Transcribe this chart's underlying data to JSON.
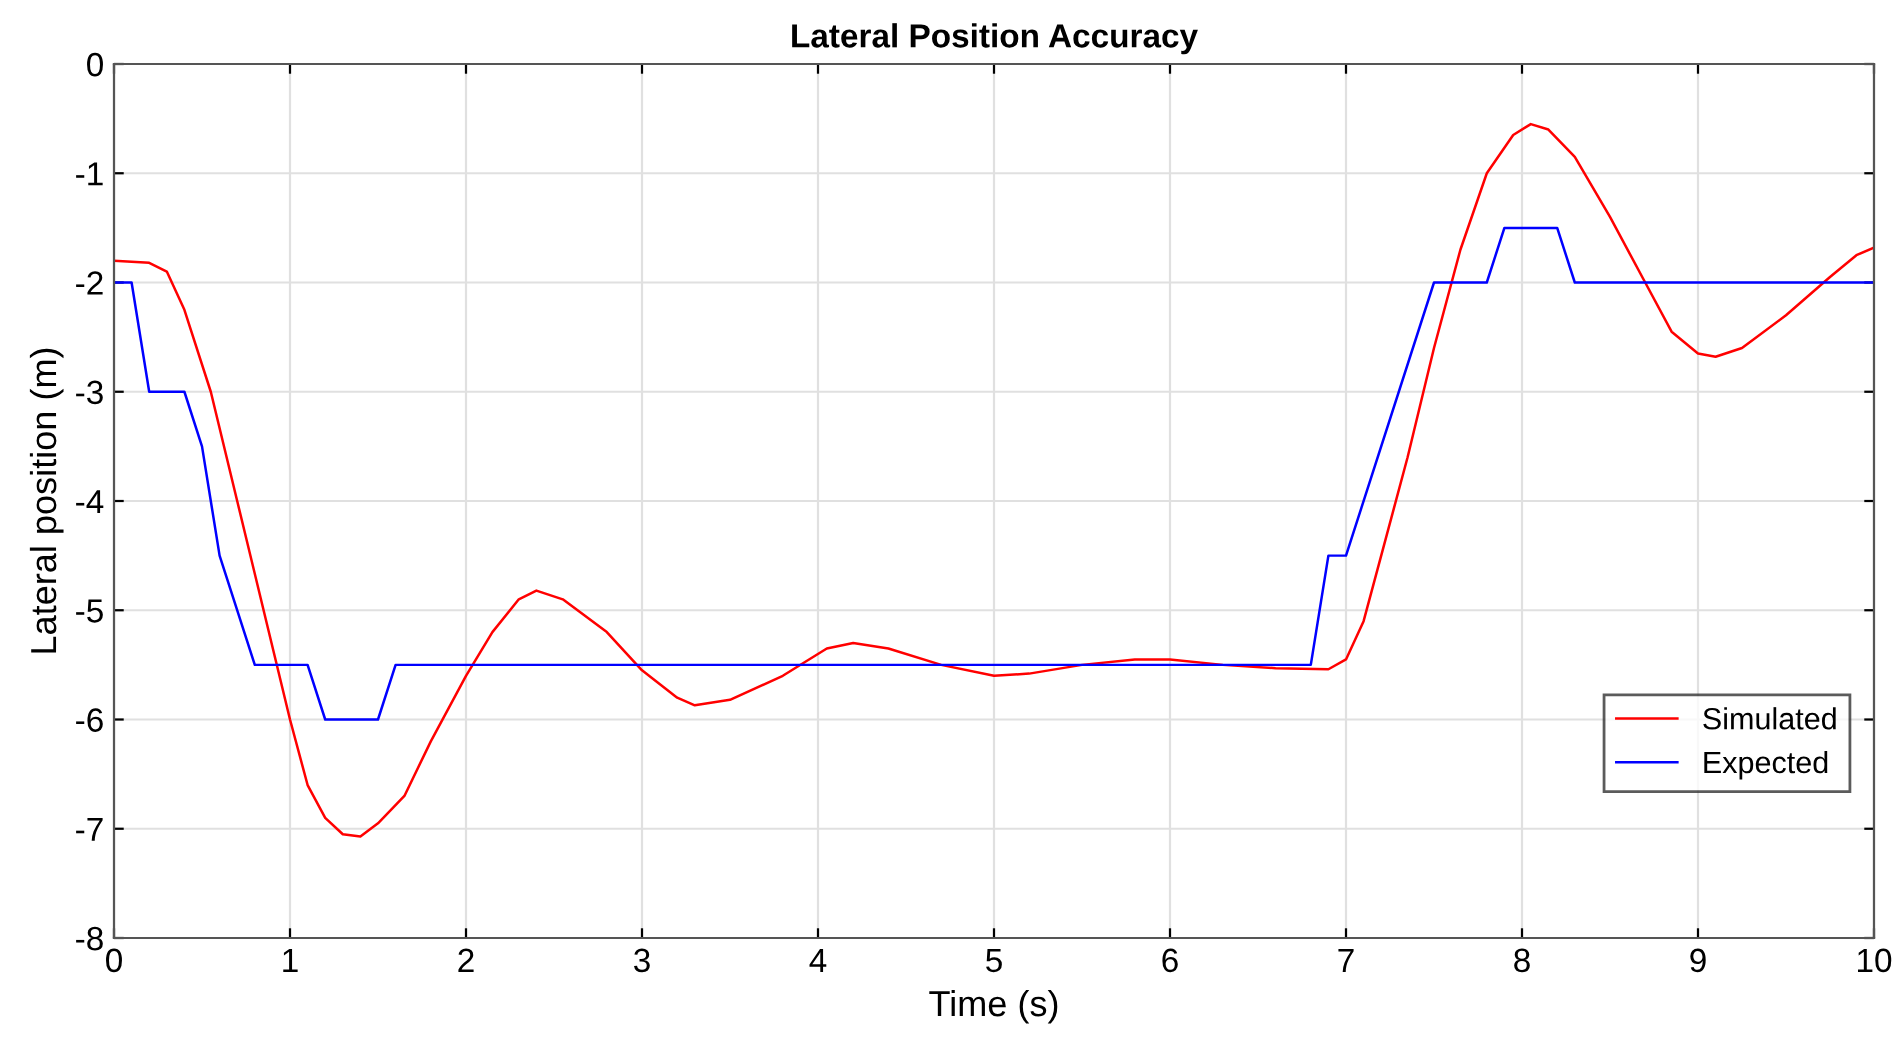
{
  "chart_data": {
    "type": "line",
    "title": "Lateral Position Accuracy",
    "xlabel": "Time (s)",
    "ylabel": "Lateral position (m)",
    "xlim": [
      0,
      10
    ],
    "ylim": [
      -8,
      0
    ],
    "xticks": [
      0,
      1,
      2,
      3,
      4,
      5,
      6,
      7,
      8,
      9,
      10
    ],
    "yticks": [
      -8,
      -7,
      -6,
      -5,
      -4,
      -3,
      -2,
      -1,
      0
    ],
    "grid": true,
    "legend": "bottom right",
    "marker": "none",
    "line_style": "solid",
    "series": [
      {
        "name": "Simulated",
        "color": "#ff0000",
        "x": [
          0,
          0.2,
          0.3,
          0.4,
          0.55,
          0.7,
          0.85,
          1.0,
          1.1,
          1.2,
          1.3,
          1.4,
          1.5,
          1.65,
          1.8,
          2.0,
          2.15,
          2.3,
          2.4,
          2.55,
          2.8,
          3.0,
          3.2,
          3.3,
          3.5,
          3.8,
          4.05,
          4.2,
          4.4,
          4.7,
          5.0,
          5.2,
          5.5,
          5.8,
          6.0,
          6.3,
          6.6,
          6.9,
          7.0,
          7.1,
          7.2,
          7.35,
          7.5,
          7.65,
          7.8,
          7.95,
          8.05,
          8.15,
          8.3,
          8.5,
          8.7,
          8.85,
          9.0,
          9.1,
          9.25,
          9.5,
          9.75,
          9.9,
          10
        ],
        "values": [
          -1.8,
          -1.82,
          -1.9,
          -2.25,
          -3,
          -4,
          -5,
          -6,
          -6.6,
          -6.9,
          -7.05,
          -7.07,
          -6.95,
          -6.7,
          -6.2,
          -5.6,
          -5.2,
          -4.9,
          -4.82,
          -4.9,
          -5.2,
          -5.55,
          -5.8,
          -5.87,
          -5.82,
          -5.6,
          -5.35,
          -5.3,
          -5.35,
          -5.5,
          -5.6,
          -5.58,
          -5.5,
          -5.45,
          -5.45,
          -5.5,
          -5.53,
          -5.54,
          -5.45,
          -5.1,
          -4.5,
          -3.6,
          -2.6,
          -1.7,
          -1.0,
          -0.65,
          -0.55,
          -0.6,
          -0.85,
          -1.4,
          -2.0,
          -2.45,
          -2.65,
          -2.68,
          -2.6,
          -2.3,
          -1.95,
          -1.75,
          -1.68
        ]
      },
      {
        "name": "Expected",
        "color": "#0000ff",
        "x": [
          0,
          0.1,
          0.2,
          0.4,
          0.5,
          0.6,
          0.8,
          1.1,
          1.2,
          1.5,
          1.6,
          6.8,
          6.9,
          7.0,
          7.5,
          7.8,
          7.9,
          8.2,
          8.3,
          10
        ],
        "values": [
          -2,
          -2,
          -3,
          -3,
          -3.5,
          -4.5,
          -5.5,
          -5.5,
          -6,
          -6,
          -5.5,
          -5.5,
          -4.5,
          -4.5,
          -2,
          -2,
          -1.5,
          -1.5,
          -2,
          -2
        ]
      }
    ]
  }
}
